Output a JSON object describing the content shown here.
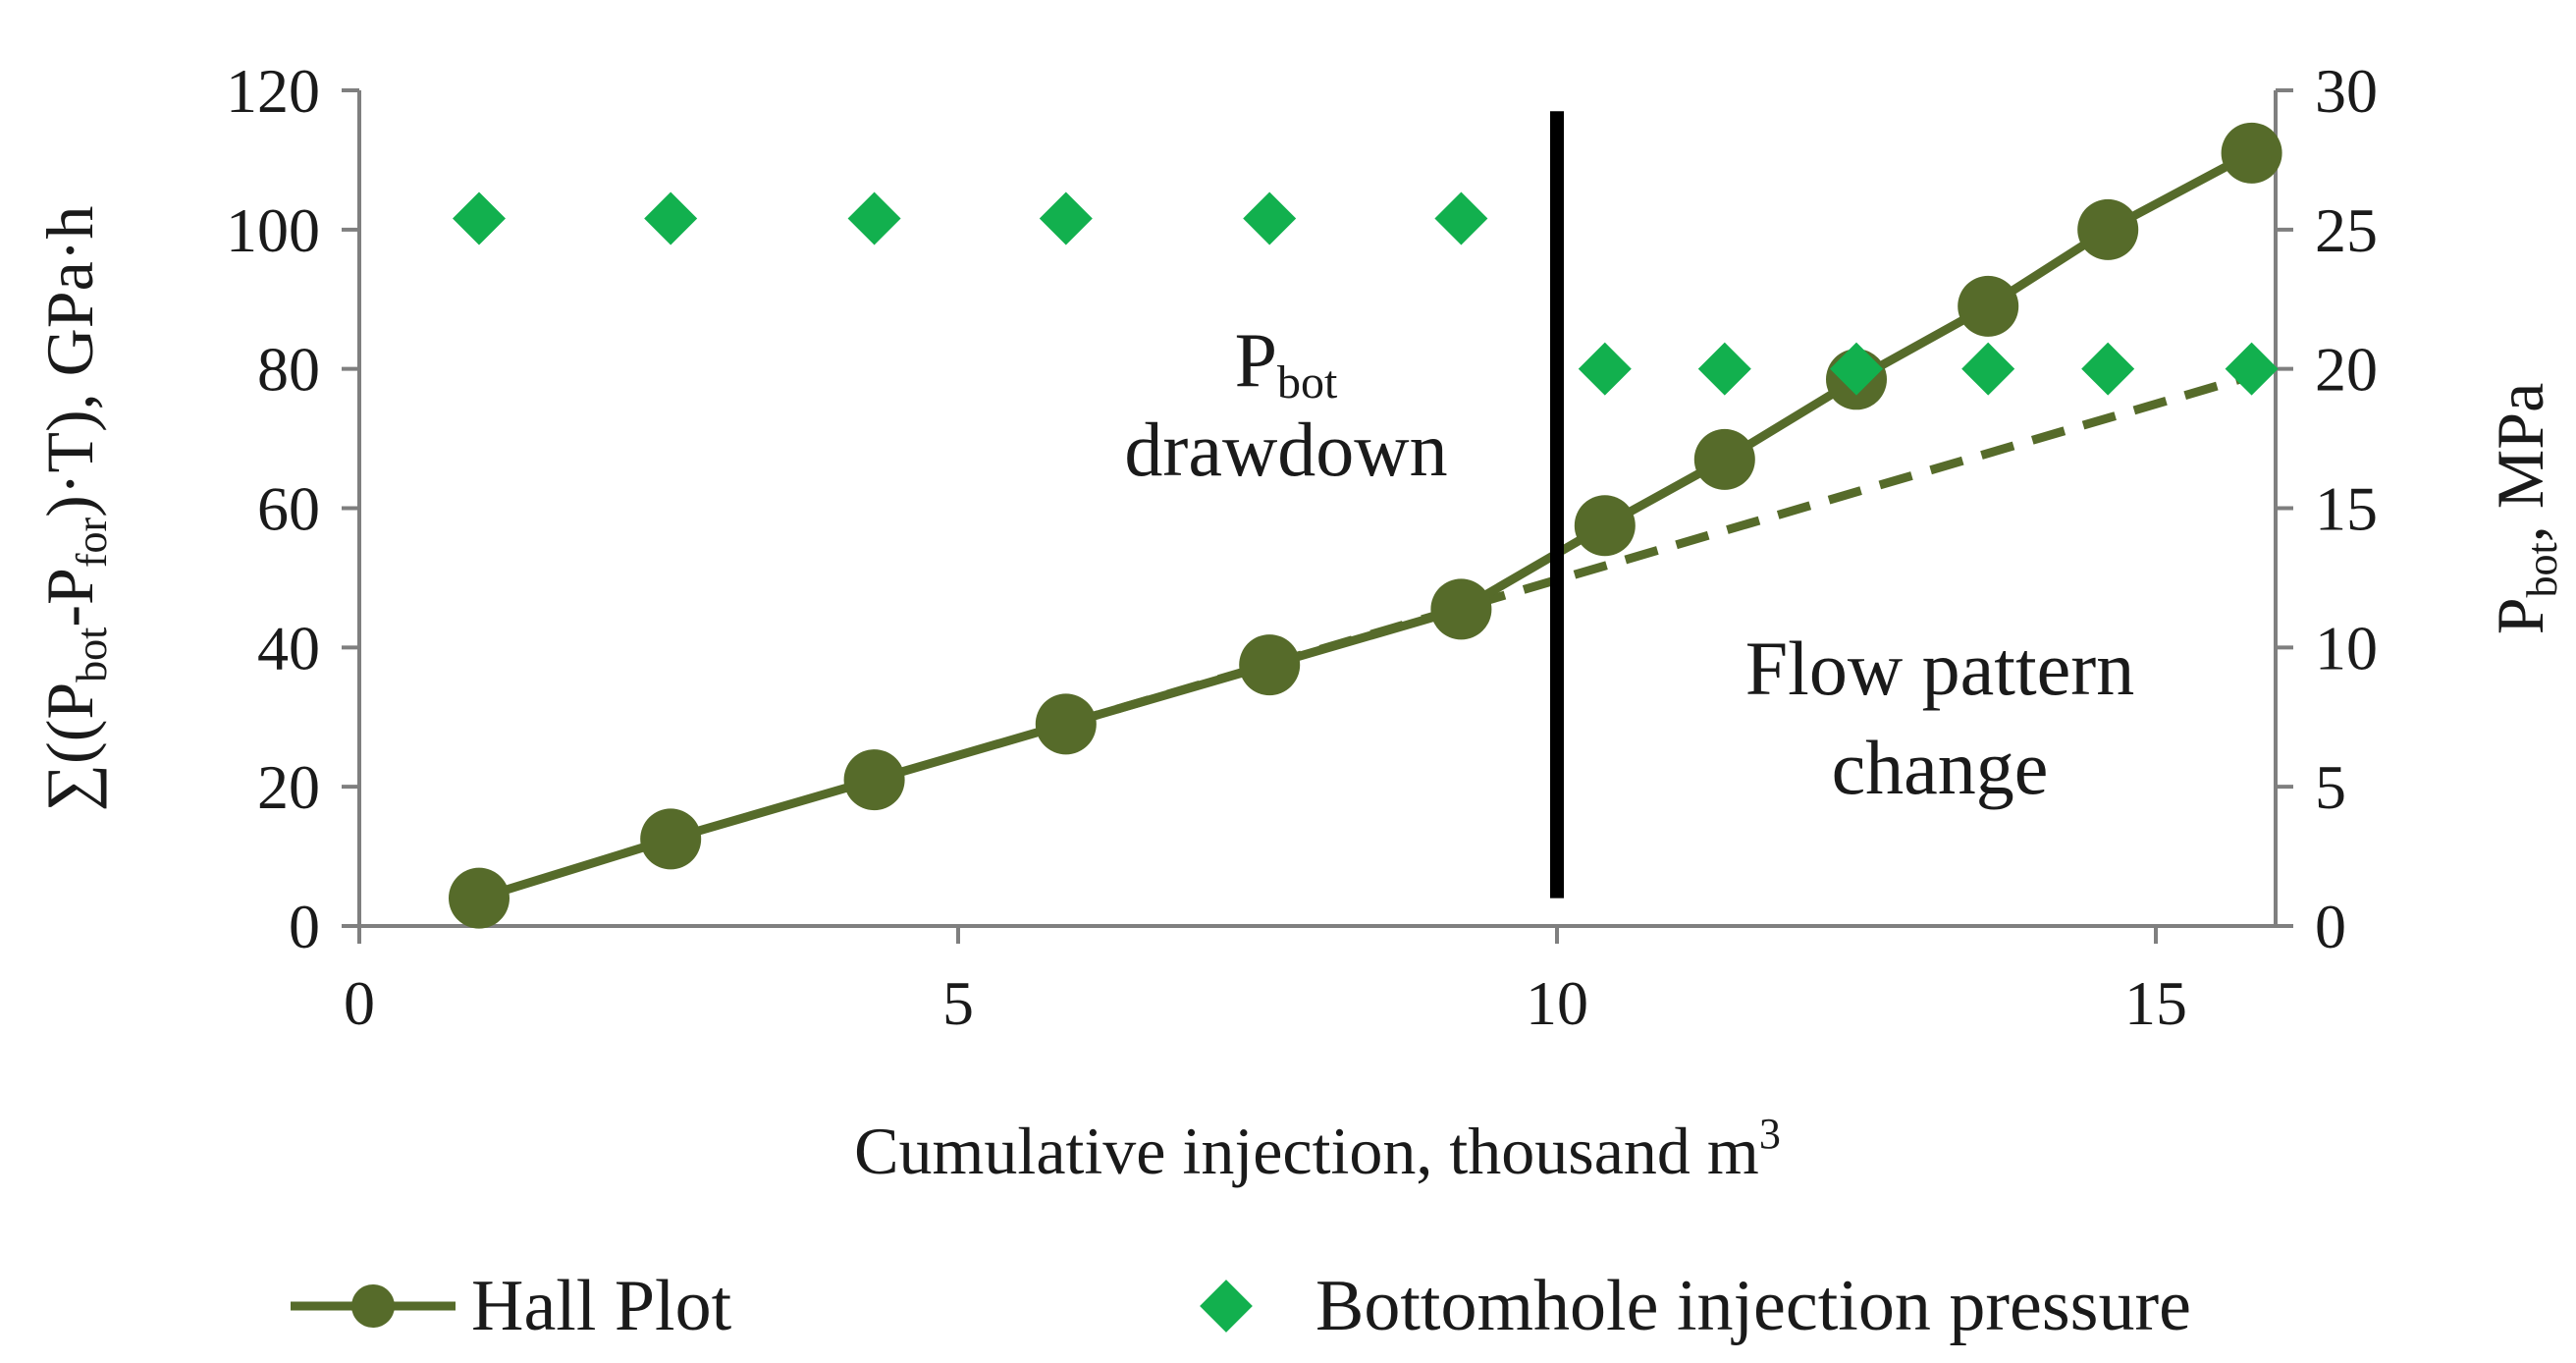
{
  "chart_data": {
    "type": "line",
    "xlabel": "Cumulative injection, thousand m",
    "xlabel_sup": "3",
    "ylabel": {
      "prefix": "∑((P",
      "sub1": "bot",
      "mid": "-P",
      "sub2": "for",
      "suffix": ")·T),  GPa·h"
    },
    "y2label": {
      "prefix": "P",
      "sub": "bot",
      "suffix": ",  MPa"
    },
    "xlim": [
      0,
      16
    ],
    "ylim": [
      0,
      120
    ],
    "y2lim": [
      0,
      30
    ],
    "x_ticks": [
      0,
      5,
      10,
      15
    ],
    "y_ticks": [
      0,
      20,
      40,
      60,
      80,
      100,
      120
    ],
    "y2_ticks": [
      0,
      5,
      10,
      15,
      20,
      25,
      30
    ],
    "grid": false,
    "legend_position": "bottom",
    "series": [
      {
        "name": "Hall Plot",
        "axis": "left",
        "marker": "circle",
        "color": "#566b2a",
        "x": [
          1.0,
          2.6,
          4.3,
          5.9,
          7.6,
          9.2,
          10.4,
          11.4,
          12.5,
          13.6,
          14.6,
          15.8
        ],
        "y": [
          4,
          12.5,
          21,
          29,
          37.5,
          45.5,
          57.5,
          67,
          78.5,
          89,
          100,
          111
        ]
      },
      {
        "name": "Bottomhole injection pressure",
        "axis": "right",
        "marker": "diamond",
        "color": "#12b04e",
        "x": [
          1.0,
          2.6,
          4.3,
          5.9,
          7.6,
          9.2,
          10.4,
          11.4,
          12.5,
          13.6,
          14.6,
          15.8
        ],
        "y": [
          25.4,
          25.4,
          25.4,
          25.4,
          25.4,
          25.4,
          20,
          20,
          20,
          20,
          20,
          20
        ]
      }
    ],
    "trend_line": {
      "style": "dashed",
      "color": "#566b2a",
      "x": [
        5.9,
        15.8
      ],
      "y": [
        29,
        79
      ]
    },
    "vertical_line": {
      "x": 10,
      "y_from": 4,
      "y_to": 117,
      "color": "#000000"
    },
    "annotations": [
      {
        "id": "drawdown",
        "main": "P",
        "sub": "bot",
        "line2": "drawdown"
      },
      {
        "id": "flow",
        "line1": "Flow pattern",
        "line2": "change"
      }
    ]
  }
}
